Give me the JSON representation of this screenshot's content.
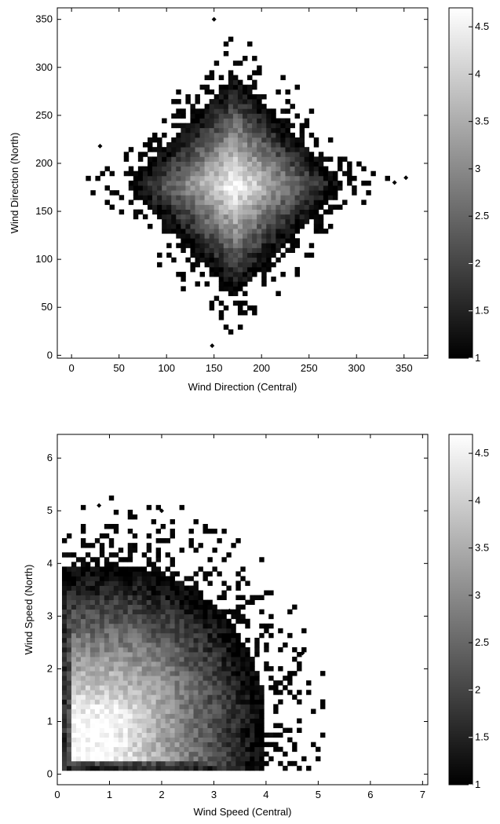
{
  "chart_data": [
    {
      "type": "heatmap",
      "title": "",
      "xlabel": "Wind Direction (Central)",
      "ylabel": "Wind Direction (North)",
      "xlim": [
        -15,
        375
      ],
      "ylim": [
        -3,
        362
      ],
      "xticks": [
        0,
        50,
        100,
        150,
        200,
        250,
        300,
        350
      ],
      "yticks": [
        0,
        50,
        100,
        150,
        200,
        250,
        300,
        350
      ],
      "colorbar": {
        "range": [
          1,
          4.7
        ],
        "ticks": [
          1,
          1.5,
          2,
          2.5,
          3,
          3.5,
          4,
          4.5
        ],
        "colormap": "gray"
      },
      "density": {
        "shape": "rotated-square",
        "center": [
          172,
          178
        ],
        "extent": 135,
        "peak": 4.7,
        "scatter_extent": 175
      },
      "outliers": [
        [
          148,
          10
        ],
        [
          352,
          185
        ],
        [
          30,
          218
        ],
        [
          340,
          180
        ],
        [
          150,
          350
        ]
      ]
    },
    {
      "type": "heatmap",
      "title": "",
      "xlabel": "Wind Speed (Central)",
      "ylabel": "Wind Speed (North)",
      "xlim": [
        0,
        7.1
      ],
      "ylim": [
        -0.2,
        6.45
      ],
      "xticks": [
        0,
        1,
        2,
        3,
        4,
        5,
        6,
        7
      ],
      "yticks": [
        0,
        1,
        2,
        3,
        4,
        5,
        6
      ],
      "colorbar": {
        "range": [
          1,
          4.7
        ],
        "ticks": [
          1,
          1.5,
          2,
          2.5,
          3,
          3.5,
          4,
          4.5
        ],
        "colormap": "gray"
      },
      "density": {
        "shape": "quarter-disc",
        "center": [
          1.0,
          1.0
        ],
        "extent": 4.5,
        "peak": 4.7
      },
      "outliers": [
        [
          0.8,
          5.1
        ],
        [
          2.0,
          5.0
        ],
        [
          4.7,
          2.3
        ],
        [
          3.3,
          3.1
        ]
      ]
    }
  ]
}
